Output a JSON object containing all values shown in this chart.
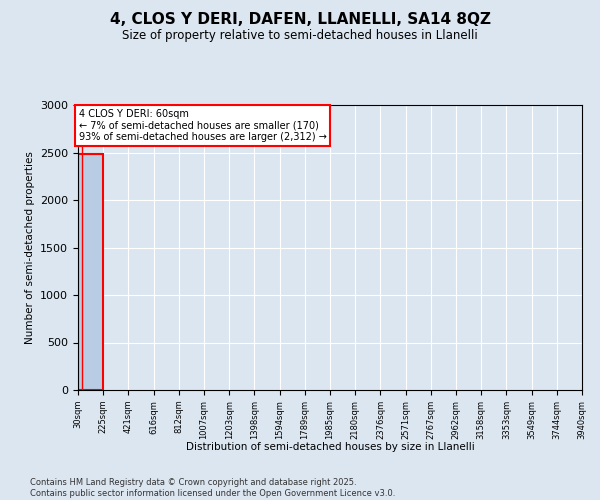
{
  "title_line1": "4, CLOS Y DERI, DAFEN, LLANELLI, SA14 8QZ",
  "title_line2": "Size of property relative to semi-detached houses in Llanelli",
  "xlabel": "Distribution of semi-detached houses by size in Llanelli",
  "ylabel": "Number of semi-detached properties",
  "bin_edges": [
    30,
    225,
    421,
    616,
    812,
    1007,
    1203,
    1398,
    1594,
    1789,
    1985,
    2180,
    2376,
    2571,
    2767,
    2962,
    3158,
    3353,
    3549,
    3744,
    3940
  ],
  "bar_heights": [
    2482,
    0,
    0,
    0,
    0,
    0,
    0,
    0,
    0,
    0,
    0,
    0,
    0,
    0,
    0,
    0,
    0,
    0,
    0,
    0
  ],
  "bar_color": "#b8cce4",
  "bar_edge_color": "#4472c4",
  "annotation_text_line1": "4 CLOS Y DERI: 60sqm",
  "annotation_text_line2": "← 7% of semi-detached houses are smaller (170)",
  "annotation_text_line3": "93% of semi-detached houses are larger (2,312) →",
  "highlight_bar_index": 0,
  "highlight_bar_edge_color": "#ff0000",
  "property_sqm": 60,
  "ylim": [
    0,
    3000
  ],
  "yticks": [
    0,
    500,
    1000,
    1500,
    2000,
    2500,
    3000
  ],
  "footer_line1": "Contains HM Land Registry data © Crown copyright and database right 2025.",
  "footer_line2": "Contains public sector information licensed under the Open Government Licence v3.0.",
  "background_color": "#dce6f1",
  "grid_color": "#ffffff"
}
